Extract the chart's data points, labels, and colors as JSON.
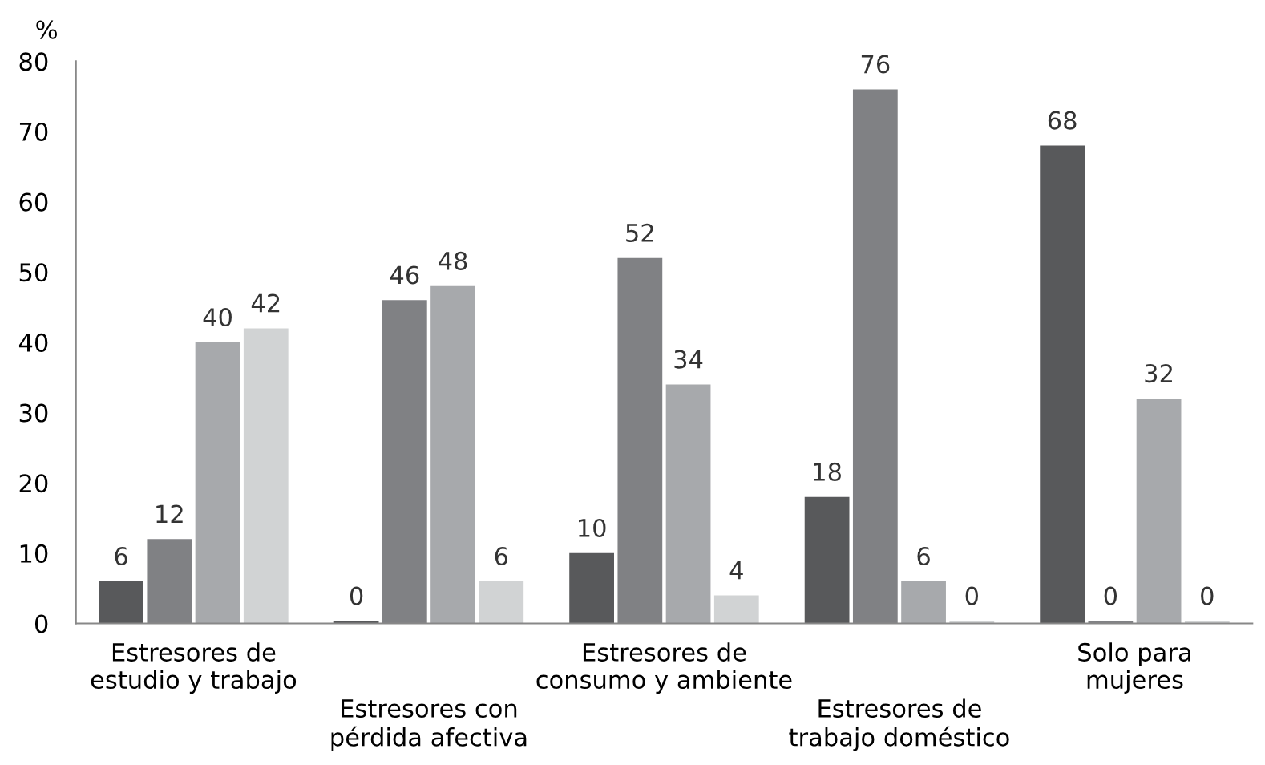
{
  "chart_data": {
    "type": "bar",
    "ylabel": "%",
    "categories": [
      "Estresores de\nestudio y trabajo",
      "Estresores con\npérdida afectiva",
      "Estresores de\nconsumo y ambiente",
      "Estresores de\ntrabajo doméstico",
      "Solo para\nmujeres"
    ],
    "series": [
      {
        "color": "#58595b",
        "values": [
          6,
          0,
          10,
          18,
          68
        ]
      },
      {
        "color": "#808184",
        "values": [
          12,
          46,
          52,
          76,
          0
        ]
      },
      {
        "color": "#a7a9ac",
        "values": [
          40,
          48,
          34,
          6,
          32
        ]
      },
      {
        "color": "#d1d3d4",
        "values": [
          42,
          6,
          4,
          0,
          0
        ]
      }
    ],
    "ylim": [
      0,
      80
    ],
    "yticks": [
      0,
      10,
      20,
      30,
      40,
      50,
      60,
      70,
      80
    ],
    "data_labels": true,
    "grid": false,
    "legend": false
  }
}
